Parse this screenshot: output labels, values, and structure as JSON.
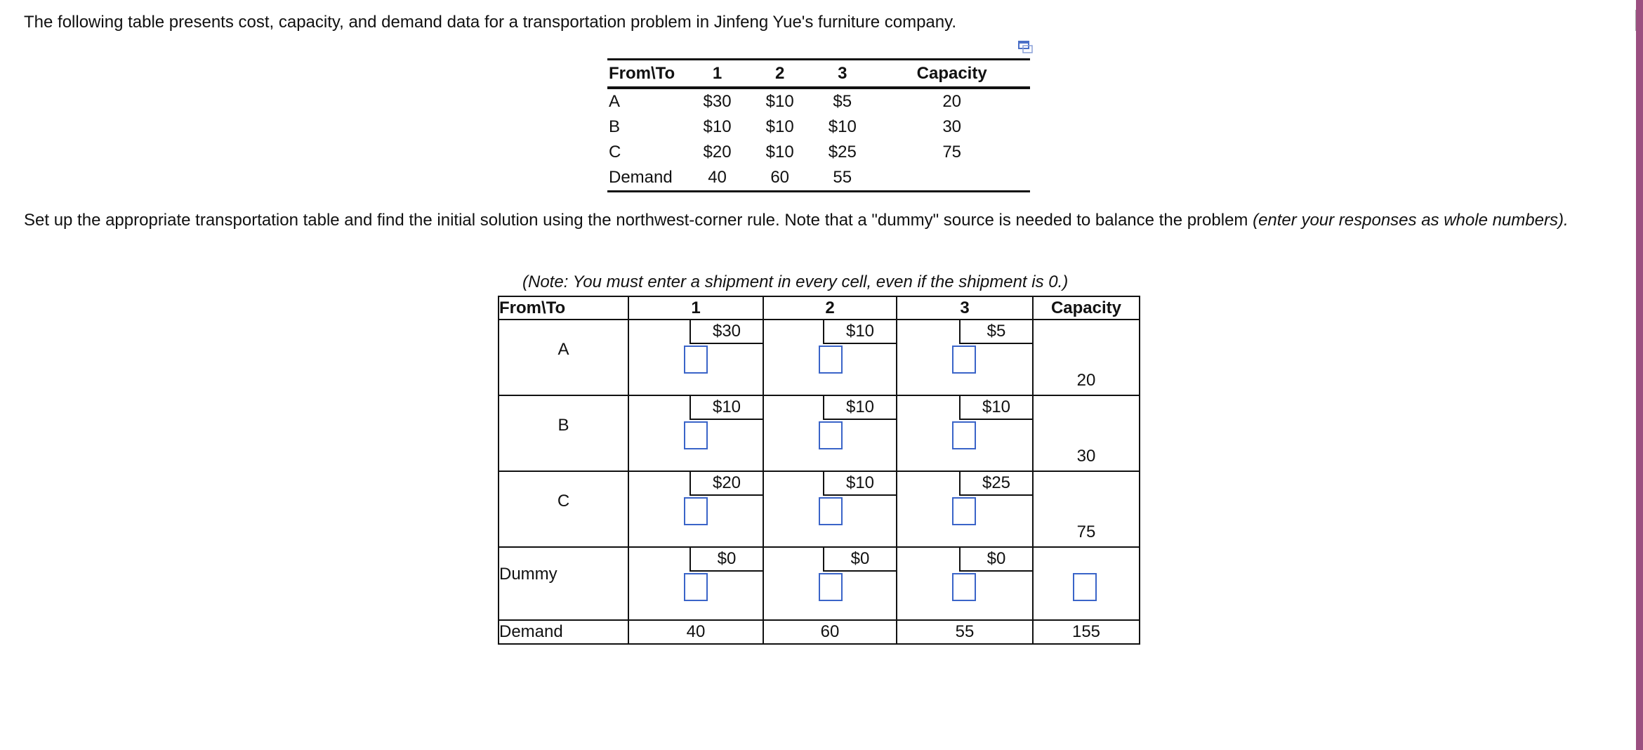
{
  "intro": "The following table presents cost, capacity, and demand data for a transportation problem in Jinfeng Yue's furniture company.",
  "given_table": {
    "headers": [
      "From\\To",
      "1",
      "2",
      "3",
      "Capacity"
    ],
    "rows": [
      [
        "A",
        "$30",
        "$10",
        "$5",
        "20"
      ],
      [
        "B",
        "$10",
        "$10",
        "$10",
        "30"
      ],
      [
        "C",
        "$20",
        "$10",
        "$25",
        "75"
      ],
      [
        "Demand",
        "40",
        "60",
        "55",
        ""
      ]
    ]
  },
  "instructions": {
    "text": "Set up the appropriate transportation table and find the initial solution using the northwest-corner rule. Note that a \"dummy\" source is needed to balance the problem ",
    "italic": "(enter your responses as whole numbers)."
  },
  "note": "(Note: You must enter a shipment in every cell, even if the shipment is 0.)",
  "answer_table": {
    "headers": [
      "From\\To",
      "1",
      "2",
      "3",
      "Capacity"
    ],
    "rows": [
      {
        "label": "A",
        "costs": [
          "$30",
          "$10",
          "$5"
        ],
        "capacity": "20"
      },
      {
        "label": "B",
        "costs": [
          "$10",
          "$10",
          "$10"
        ],
        "capacity": "30"
      },
      {
        "label": "C",
        "costs": [
          "$20",
          "$10",
          "$25"
        ],
        "capacity": "75"
      },
      {
        "label": "Dummy",
        "costs": [
          "$0",
          "$0",
          "$0"
        ],
        "capacity": ""
      }
    ],
    "demand": [
      "Demand",
      "40",
      "60",
      "55",
      "155"
    ]
  },
  "colors": {
    "input_border": "#3a64c8",
    "side_bar": "#9b4f80"
  }
}
